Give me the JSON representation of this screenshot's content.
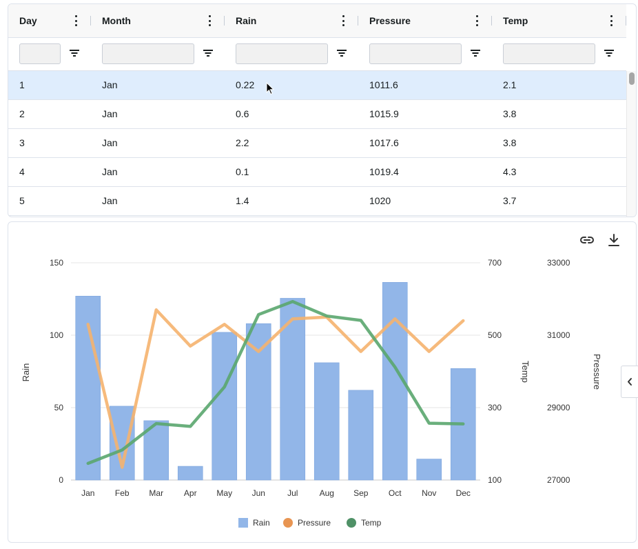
{
  "grid": {
    "columns": [
      {
        "key": "day",
        "label": "Day"
      },
      {
        "key": "month",
        "label": "Month"
      },
      {
        "key": "rain",
        "label": "Rain"
      },
      {
        "key": "pressure",
        "label": "Pressure"
      },
      {
        "key": "temp",
        "label": "Temp"
      }
    ],
    "rows": [
      {
        "day": "1",
        "month": "Jan",
        "rain": "0.22",
        "pressure": "1011.6",
        "temp": "2.1"
      },
      {
        "day": "2",
        "month": "Jan",
        "rain": "0.6",
        "pressure": "1015.9",
        "temp": "3.8"
      },
      {
        "day": "3",
        "month": "Jan",
        "rain": "2.2",
        "pressure": "1017.6",
        "temp": "3.8"
      },
      {
        "day": "4",
        "month": "Jan",
        "rain": "0.1",
        "pressure": "1019.4",
        "temp": "4.3"
      },
      {
        "day": "5",
        "month": "Jan",
        "rain": "1.4",
        "pressure": "1020",
        "temp": "3.7"
      }
    ],
    "selected_row": 0
  },
  "toolbar": {
    "link_icon": "link-icon",
    "download_icon": "download-icon",
    "collapse_icon": "chevron-left-icon"
  },
  "chart_data": {
    "type": "bar",
    "categories": [
      "Jan",
      "Feb",
      "Mar",
      "Apr",
      "May",
      "Jun",
      "Jul",
      "Aug",
      "Sep",
      "Oct",
      "Nov",
      "Dec"
    ],
    "series": [
      {
        "name": "Rain",
        "type": "bar",
        "axis": "Rain",
        "color": "#92b6e8",
        "values": [
          127,
          51,
          41,
          9.5,
          102,
          108,
          125.5,
          81,
          62,
          136.5,
          14.5,
          77
        ]
      },
      {
        "name": "Pressure",
        "type": "line",
        "axis": "Pressure",
        "color": "#f5b36e",
        "values": [
          31300,
          27350,
          31700,
          30700,
          31300,
          30550,
          31450,
          31500,
          30550,
          31450,
          30550,
          31400
        ]
      },
      {
        "name": "Temp",
        "type": "line",
        "axis": "Temp",
        "color": "#5aa66e",
        "values": [
          146,
          183,
          256,
          248,
          357,
          557,
          593,
          553,
          541,
          412,
          257,
          255
        ]
      }
    ],
    "axes": [
      {
        "name": "Rain",
        "label": "Rain",
        "position": "left",
        "range": [
          0,
          150
        ],
        "ticks": [
          "0",
          "50",
          "100",
          "150"
        ]
      },
      {
        "name": "Temp",
        "label": "Temp",
        "position": "right",
        "range": [
          100,
          700
        ],
        "ticks": [
          "100",
          "300",
          "500",
          "700"
        ]
      },
      {
        "name": "Pressure",
        "label": "Pressure",
        "position": "right",
        "range": [
          27000,
          33000
        ],
        "ticks": [
          "27000",
          "29000",
          "31000",
          "33000"
        ]
      }
    ],
    "legend": {
      "placement": "bottom",
      "items": [
        "Rain",
        "Pressure",
        "Temp"
      ]
    },
    "grid": true
  }
}
